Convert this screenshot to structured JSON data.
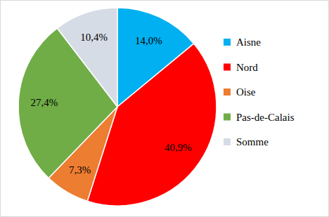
{
  "chart_data": {
    "type": "pie",
    "categories": [
      "Aisne",
      "Nord",
      "Oise",
      "Pas-de-Calais",
      "Somme"
    ],
    "values": [
      14.0,
      40.9,
      7.3,
      27.4,
      10.4
    ],
    "value_labels": [
      "14,0%",
      "40,9%",
      "7,3%",
      "27,4%",
      "10,4%"
    ],
    "colors": [
      "#00b0f0",
      "#ff0000",
      "#ed7d31",
      "#70ad47",
      "#d6dce5"
    ],
    "data_labels": true,
    "legend": "right"
  }
}
